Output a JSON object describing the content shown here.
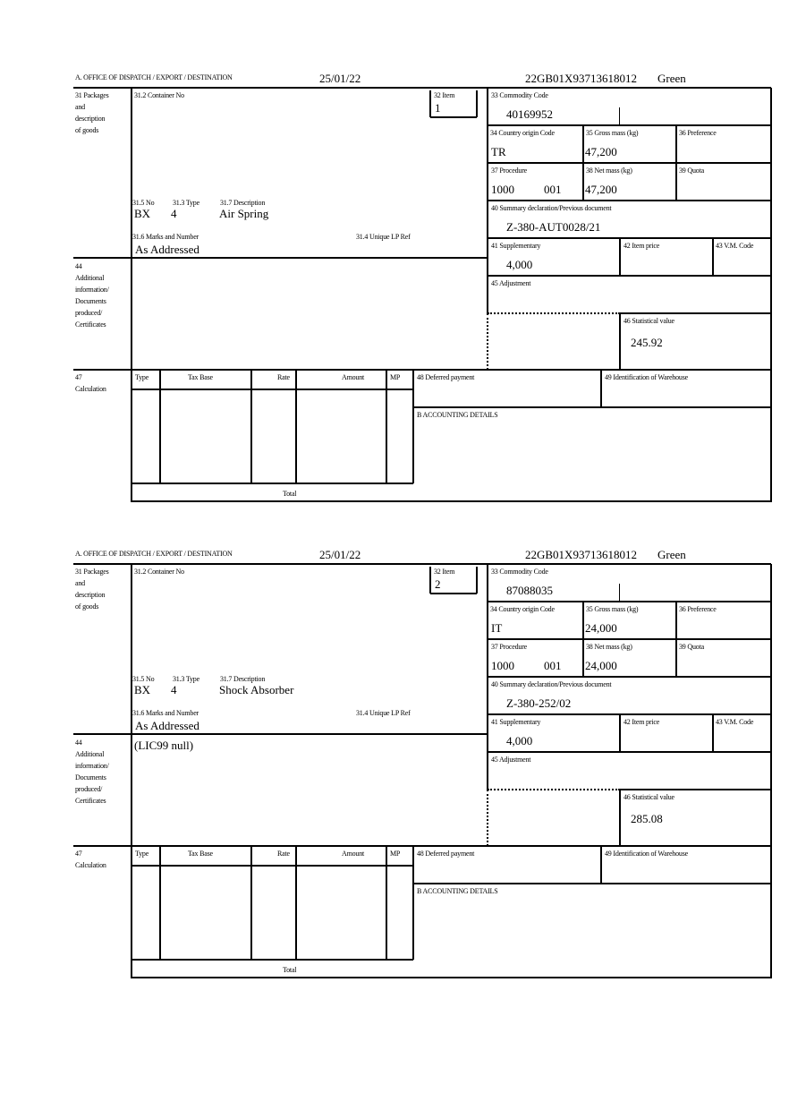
{
  "labels": {
    "office": "A.  OFFICE OF DISPATCH / EXPORT / DESTINATION",
    "packages": [
      "31 Packages",
      "and",
      "description",
      "of goods"
    ],
    "container_no": "31.2 Container No",
    "item": "32 Item",
    "commodity_code": "33 Commodity Code",
    "country_origin": "34 Country origin Code",
    "gross_mass": "35 Gross mass (kg)",
    "preference": "36 Preference",
    "procedure": "37 Procedure",
    "net_mass": "38 Net mass (kg)",
    "quota": "39 Quota",
    "summary_declaration": "40 Summary declaration/Previous document",
    "supplementary": "41 Supplementary",
    "item_price": "42 Item price",
    "vm_code": "43 V.M. Code",
    "adjustment": "45 Adjustment",
    "statistical_value": "46 Statistical value",
    "no": "31.5 No",
    "type": "31.3 Type",
    "description": "31.7 Description",
    "marks": "31.6 Marks and Number",
    "unique_lp_ref": "31.4 Unique LP Ref",
    "additional_info": [
      "44",
      "Additional",
      "information/",
      "Documents",
      "produced/",
      "Certificates"
    ],
    "calculation": [
      "47",
      "Calculation"
    ],
    "calc_type": "Type",
    "calc_tax_base": "Tax Base",
    "calc_rate": "Rate",
    "calc_amount": "Amount",
    "calc_mp": "MP",
    "deferred_payment": "48 Deferred payment",
    "warehouse": "49 Identification of Warehouse",
    "accounting": "B ACCOUNTING DETAILS",
    "total": "Total"
  },
  "forms": [
    {
      "date": "25/01/22",
      "reference": "22GB01X93713618012",
      "route": "Green",
      "item": "1",
      "commodity_code": "40169952",
      "country_origin": "TR",
      "gross_mass": "47,200",
      "procedure": "1000",
      "procedure_additional": "001",
      "net_mass": "47,200",
      "summary_declaration": "Z-380-AUT0028/21",
      "supplementary": "4,000",
      "statistical_value": "245.92",
      "package_kind": "BX",
      "package_count": "4",
      "description": "Air Spring",
      "marks": "As Addressed",
      "additional_info": ""
    },
    {
      "date": "25/01/22",
      "reference": "22GB01X93713618012",
      "route": "Green",
      "item": "2",
      "commodity_code": "87088035",
      "country_origin": "IT",
      "gross_mass": "24,000",
      "procedure": "1000",
      "procedure_additional": "001",
      "net_mass": "24,000",
      "summary_declaration": "Z-380-252/02",
      "supplementary": "4,000",
      "statistical_value": "285.08",
      "package_kind": "BX",
      "package_count": "4",
      "description": "Shock Absorber",
      "marks": "As Addressed",
      "additional_info": "(LIC99 null)"
    }
  ]
}
